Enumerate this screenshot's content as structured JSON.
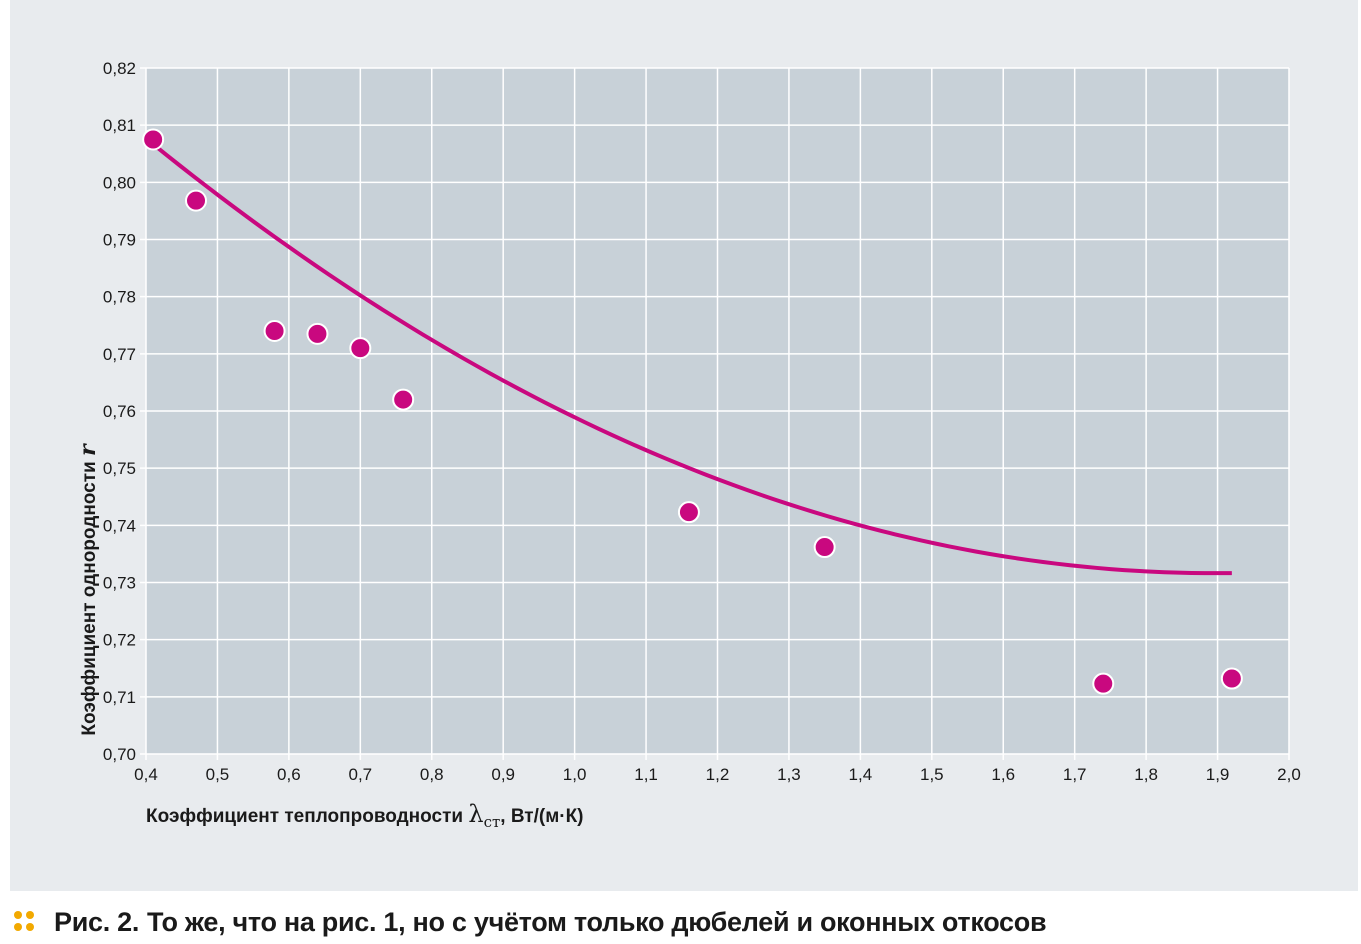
{
  "colors": {
    "panel_bg": "#e8ebee",
    "plot_bg": "#c8d1d8",
    "grid": "#ffffff",
    "series": "#c9087f",
    "marker_accent": "#f2a900"
  },
  "chart_data": {
    "type": "scatter",
    "title": "",
    "xlabel": "Коэффициент теплопроводности λст, Вт/(м·К)",
    "xlabel_main": "Коэффициент теплопроводности ",
    "xlabel_symbol": "λ",
    "xlabel_subscript": "ст",
    "xlabel_units": ", Вт/(м·К)",
    "ylabel": "Коэффициент однородности r",
    "ylabel_main": "Коэффициент однородности ",
    "ylabel_symbol": "r",
    "xlim": [
      0.4,
      2.0
    ],
    "ylim": [
      0.7,
      0.82
    ],
    "grid": true,
    "x_ticks": [
      0.4,
      0.5,
      0.6,
      0.7,
      0.8,
      0.9,
      1.0,
      1.1,
      1.2,
      1.3,
      1.4,
      1.5,
      1.6,
      1.7,
      1.8,
      1.9,
      2.0
    ],
    "x_tick_labels": [
      "0,4",
      "0,5",
      "0,6",
      "0,7",
      "0,8",
      "0,9",
      "1,0",
      "1,1",
      "1,2",
      "1,3",
      "1,4",
      "1,5",
      "1,6",
      "1,7",
      "1,8",
      "1,9",
      "2,0"
    ],
    "y_ticks": [
      0.7,
      0.71,
      0.72,
      0.73,
      0.74,
      0.75,
      0.76,
      0.77,
      0.78,
      0.79,
      0.8,
      0.81,
      0.82
    ],
    "y_tick_labels": [
      "0,70",
      "0,71",
      "0,72",
      "0,73",
      "0,74",
      "0,75",
      "0,76",
      "0,77",
      "0,78",
      "0,79",
      "0,80",
      "0,81",
      "0,82"
    ],
    "points": [
      {
        "x": 0.41,
        "y": 0.8075
      },
      {
        "x": 0.47,
        "y": 0.7968
      },
      {
        "x": 0.58,
        "y": 0.774
      },
      {
        "x": 0.64,
        "y": 0.7735
      },
      {
        "x": 0.7,
        "y": 0.771
      },
      {
        "x": 0.76,
        "y": 0.762
      },
      {
        "x": 1.16,
        "y": 0.7423
      },
      {
        "x": 1.35,
        "y": 0.7362
      },
      {
        "x": 1.74,
        "y": 0.7123
      },
      {
        "x": 1.92,
        "y": 0.7132
      }
    ],
    "trend": {
      "type": "quadratic",
      "x_range": [
        0.41,
        1.92
      ],
      "coefficients": {
        "a": 0.034,
        "b": -0.1289,
        "c": 0.8538
      }
    }
  },
  "caption": {
    "label": "Рис. 2.",
    "text": "То же, что на рис. 1, но с учётом только дюбелей и оконных откосов"
  }
}
